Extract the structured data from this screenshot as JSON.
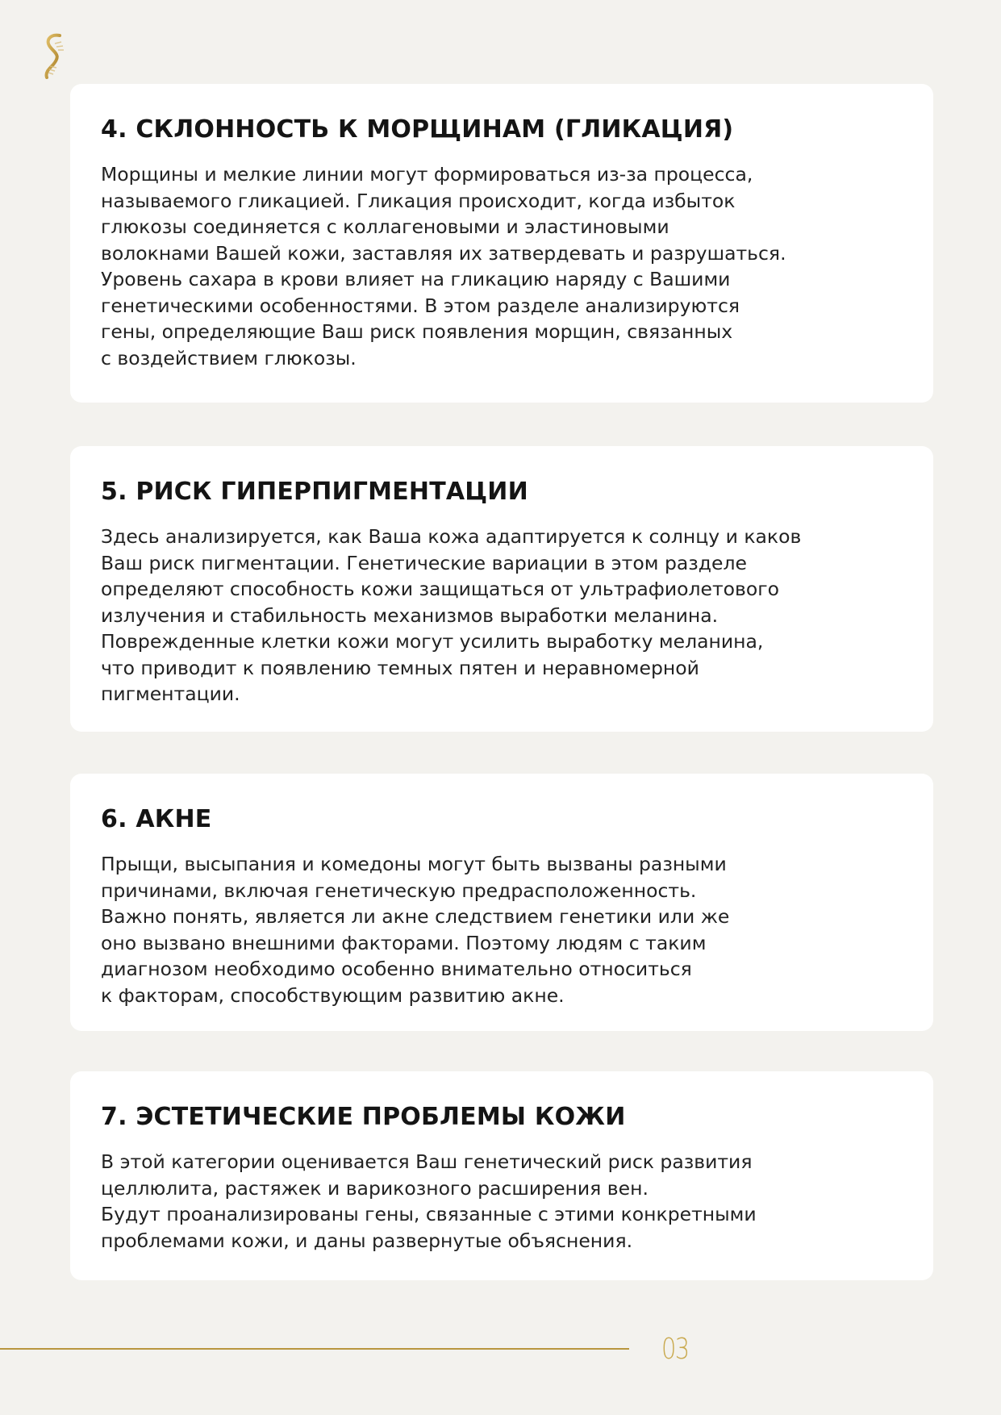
{
  "logo": {
    "icon": "dna-helix-icon",
    "color": "#c9a13f"
  },
  "sections": [
    {
      "title": "4. СКЛОННОСТЬ К МОРЩИНАМ (ГЛИКАЦИЯ)",
      "text": "Морщины и мелкие линии могут формироваться из-за процесса,\nназываемого гликацией. Гликация происходит, когда избыток\nглюкозы соединяется с коллагеновыми и эластиновыми\nволокнами Вашей кожи, заставляя их затвердевать и разрушаться.\nУровень сахара в крови влияет на гликацию наряду с Вашими\nгенетическими особенностями. В этом разделе анализируются\nгены, определяющие Ваш риск появления морщин, связанных\nс воздействием глюкозы."
    },
    {
      "title": "5. РИСК ГИПЕРПИГМЕНТАЦИИ",
      "text": "Здесь анализируется, как Ваша кожа адаптируется к солнцу и каков\nВаш риск пигментации. Генетические вариации в этом разделе\nопределяют способность кожи защищаться от ультрафиолетового\nизлучения и стабильность механизмов выработки меланина.\nПоврежденные клетки кожи могут усилить выработку меланина,\nчто приводит к появлению темных пятен и неравномерной\nпигментации."
    },
    {
      "title": "6. АКНЕ",
      "text": "Прыщи, высыпания и комедоны могут быть вызваны разными\nпричинами, включая генетическую предрасположенность.\nВажно понять, является ли акне следствием генетики или же\nоно вызвано внешними факторами. Поэтому людям с таким\nдиагнозом необходимо особенно внимательно относиться\nк факторам, способствующим развитию акне."
    },
    {
      "title": "7. ЭСТЕТИЧЕСКИЕ ПРОБЛЕМЫ КОЖИ",
      "text": "В этой категории оценивается Ваш генетический риск развития\nцеллюлита, растяжек и варикозного расширения вен.\nБудут проанализированы гены, связанные с этими конкретными\nпроблемами кожи, и даны развернутые объяснения."
    }
  ],
  "footer": {
    "page_number": "03",
    "accent": "#b8963e"
  }
}
